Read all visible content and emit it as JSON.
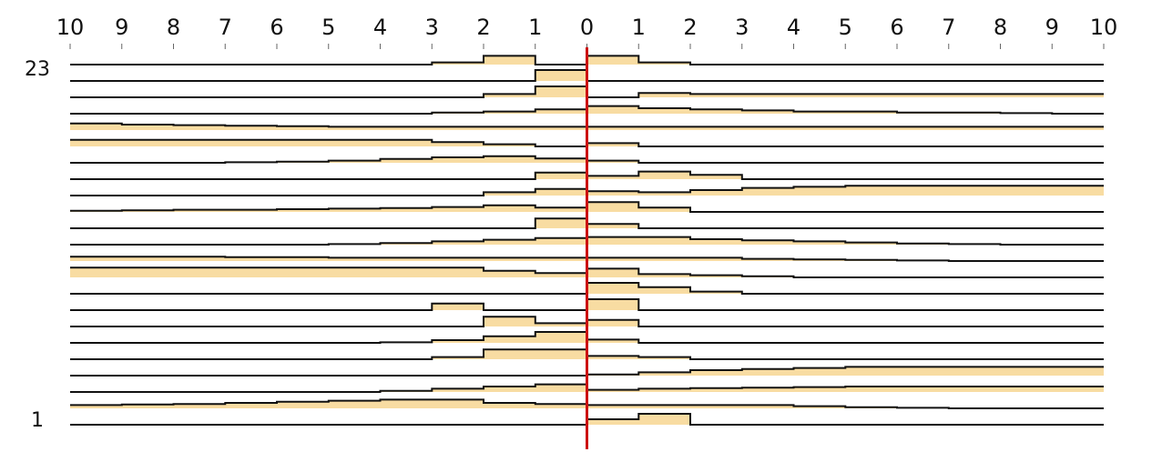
{
  "chart_data": {
    "type": "area",
    "top_axis_ticks": [
      "10",
      "9",
      "8",
      "7",
      "6",
      "5",
      "4",
      "3",
      "2",
      "1",
      "0",
      "1",
      "2",
      "3",
      "4",
      "5",
      "6",
      "7",
      "8",
      "9",
      "10"
    ],
    "xlim": [
      -10,
      10
    ],
    "row_labels": {
      "top": "23",
      "bottom": "1"
    },
    "colors": {
      "fill": "#f8dca2",
      "line": "#111111",
      "marker": "#cc1111"
    },
    "marker_x": 0,
    "row_count": 23,
    "rows": [
      {
        "row": 23,
        "heights": [
          0,
          0,
          0,
          0,
          0,
          0,
          0,
          0.2,
          0.8,
          0,
          0.8,
          0.2,
          0,
          0,
          0,
          0,
          0,
          0,
          0,
          0
        ]
      },
      {
        "row": 22,
        "heights": [
          0,
          0,
          0,
          0,
          0,
          0,
          0,
          0,
          0,
          1,
          0,
          0,
          0,
          0,
          0,
          0,
          0,
          0,
          0,
          0
        ]
      },
      {
        "row": 21,
        "heights": [
          0,
          0,
          0,
          0,
          0,
          0,
          0,
          0,
          0.3,
          1,
          0,
          0.4,
          0.3,
          0.3,
          0.3,
          0.3,
          0.3,
          0.3,
          0.3,
          0.3
        ]
      },
      {
        "row": 20,
        "heights": [
          0,
          0,
          0,
          0,
          0,
          0,
          0,
          0.1,
          0.2,
          0.4,
          0.7,
          0.5,
          0.4,
          0.3,
          0.2,
          0.2,
          0.1,
          0.1,
          0.05,
          0
        ]
      },
      {
        "row": 19,
        "heights": [
          0.6,
          0.5,
          0.45,
          0.4,
          0.35,
          0.3,
          0.3,
          0.3,
          0.3,
          0.3,
          0.3,
          0.3,
          0.3,
          0.3,
          0.3,
          0.3,
          0.3,
          0.3,
          0.3,
          0.3
        ]
      },
      {
        "row": 18,
        "heights": [
          0.6,
          0.6,
          0.6,
          0.6,
          0.6,
          0.6,
          0.6,
          0.4,
          0.2,
          0,
          0.3,
          0,
          0,
          0,
          0,
          0,
          0,
          0,
          0,
          0
        ]
      },
      {
        "row": 17,
        "heights": [
          0,
          0,
          0,
          0.05,
          0.1,
          0.2,
          0.35,
          0.5,
          0.6,
          0.4,
          0.2,
          0,
          0,
          0,
          0,
          0,
          0,
          0,
          0,
          0
        ]
      },
      {
        "row": 16,
        "heights": [
          0,
          0,
          0,
          0,
          0,
          0,
          0,
          0,
          0,
          0.6,
          0.3,
          0.7,
          0.4,
          0,
          0,
          0,
          0,
          0,
          0,
          0
        ]
      },
      {
        "row": 15,
        "heights": [
          0,
          0,
          0,
          0,
          0,
          0,
          0,
          0,
          0.3,
          0.6,
          0.4,
          0.3,
          0.5,
          0.7,
          0.8,
          0.9,
          0.9,
          0.9,
          0.9,
          0.9
        ]
      },
      {
        "row": 14,
        "heights": [
          0.1,
          0.15,
          0.2,
          0.2,
          0.25,
          0.3,
          0.35,
          0.45,
          0.6,
          0.4,
          0.9,
          0.4,
          0,
          0,
          0,
          0,
          0,
          0,
          0,
          0
        ]
      },
      {
        "row": 13,
        "heights": [
          0,
          0,
          0,
          0,
          0,
          0,
          0,
          0,
          0,
          0.9,
          0.4,
          0,
          0,
          0,
          0,
          0,
          0,
          0,
          0,
          0
        ]
      },
      {
        "row": 12,
        "heights": [
          0,
          0,
          0,
          0,
          0,
          0.05,
          0.15,
          0.3,
          0.45,
          0.6,
          0.7,
          0.7,
          0.5,
          0.4,
          0.3,
          0.2,
          0.1,
          0.05,
          0,
          0
        ]
      },
      {
        "row": 11,
        "heights": [
          0.4,
          0.4,
          0.4,
          0.35,
          0.35,
          0.3,
          0.3,
          0.3,
          0.3,
          0.3,
          0.3,
          0.3,
          0.3,
          0.2,
          0.15,
          0.1,
          0.05,
          0,
          0,
          0
        ]
      },
      {
        "row": 10,
        "heights": [
          0.9,
          0.9,
          0.9,
          0.9,
          0.9,
          0.9,
          0.9,
          0.9,
          0.6,
          0.4,
          0.8,
          0.3,
          0.2,
          0.1,
          0,
          0,
          0,
          0,
          0,
          0
        ]
      },
      {
        "row": 9,
        "heights": [
          0,
          0,
          0,
          0,
          0,
          0,
          0,
          0,
          0,
          0,
          1,
          0.6,
          0.2,
          0,
          0,
          0,
          0,
          0,
          0,
          0
        ]
      },
      {
        "row": 8,
        "heights": [
          0,
          0,
          0,
          0,
          0,
          0,
          0,
          0.6,
          0,
          0,
          1,
          0,
          0,
          0,
          0,
          0,
          0,
          0,
          0,
          0
        ]
      },
      {
        "row": 7,
        "heights": [
          0,
          0,
          0,
          0,
          0,
          0,
          0,
          0,
          0.9,
          0.3,
          0.6,
          0,
          0,
          0,
          0,
          0,
          0,
          0,
          0,
          0
        ]
      },
      {
        "row": 6,
        "heights": [
          0,
          0,
          0,
          0,
          0,
          0,
          0.05,
          0.25,
          0.6,
          1,
          0.3,
          0,
          0,
          0,
          0,
          0,
          0,
          0,
          0,
          0
        ]
      },
      {
        "row": 5,
        "heights": [
          0,
          0,
          0,
          0,
          0,
          0,
          0,
          0.2,
          0.9,
          0.9,
          0.3,
          0.2,
          0,
          0,
          0,
          0,
          0,
          0,
          0,
          0
        ]
      },
      {
        "row": 4,
        "heights": [
          0,
          0,
          0,
          0,
          0,
          0,
          0,
          0,
          0,
          0,
          0.1,
          0.3,
          0.5,
          0.6,
          0.7,
          0.8,
          0.8,
          0.8,
          0.8,
          0.8
        ]
      },
      {
        "row": 3,
        "heights": [
          0,
          0,
          0,
          0,
          0,
          0,
          0.1,
          0.3,
          0.5,
          0.7,
          0.2,
          0.3,
          0.35,
          0.4,
          0.45,
          0.5,
          0.5,
          0.5,
          0.5,
          0.5
        ]
      },
      {
        "row": 2,
        "heights": [
          0.3,
          0.35,
          0.4,
          0.5,
          0.6,
          0.7,
          0.8,
          0.8,
          0.5,
          0.4,
          0.3,
          0.3,
          0.3,
          0.3,
          0.2,
          0.1,
          0.05,
          0,
          0,
          0
        ]
      },
      {
        "row": 1,
        "heights": [
          0,
          0,
          0,
          0,
          0,
          0,
          0,
          0,
          0,
          0,
          0.5,
          1,
          0,
          0,
          0,
          0,
          0,
          0,
          0,
          0
        ]
      }
    ]
  }
}
